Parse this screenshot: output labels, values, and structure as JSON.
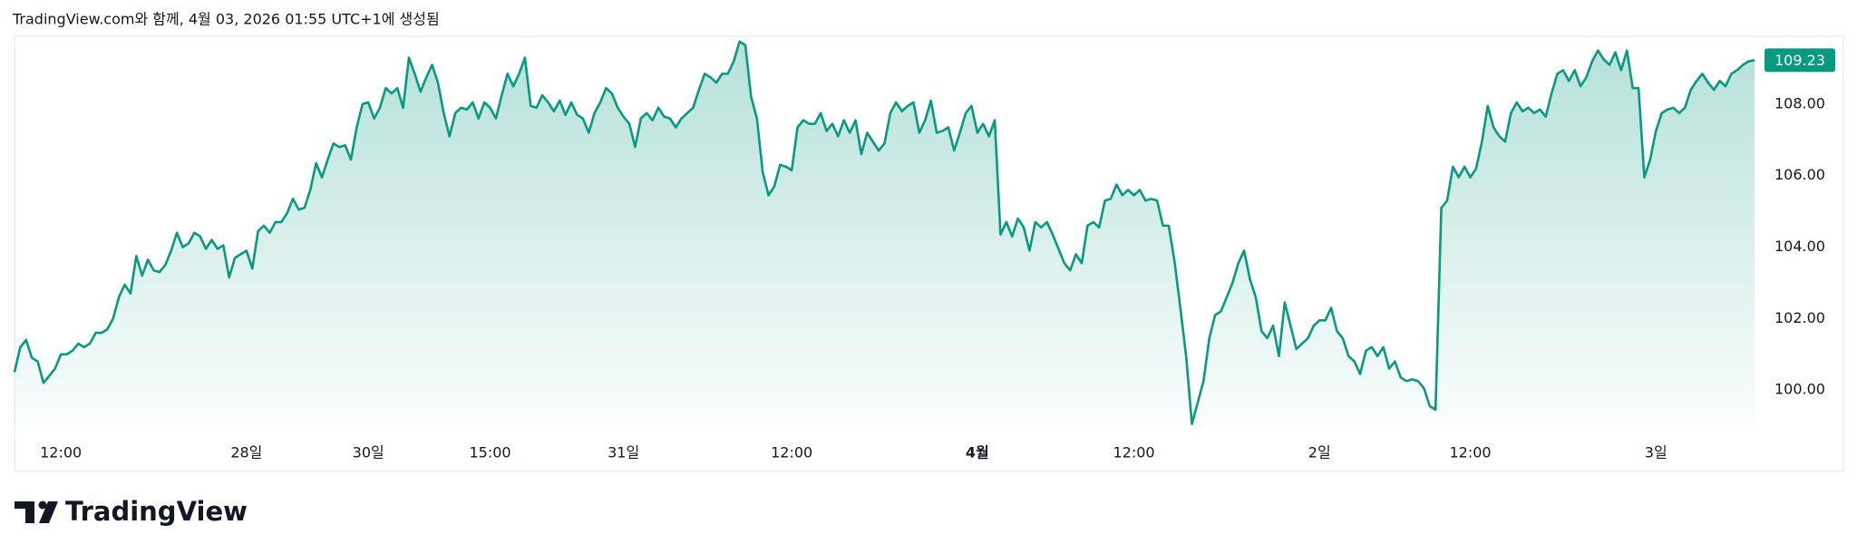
{
  "caption": "TradingView.com와 함께, 4월 03, 2026 01:55 UTC+1에 생성됨",
  "brand": "TradingView",
  "chart_data": {
    "type": "area",
    "color": "#089981",
    "grid": false,
    "xlim": [
      0,
      300
    ],
    "ylim": [
      99.04,
      109.9
    ],
    "yticks": [
      {
        "value": 100,
        "label": "100.00"
      },
      {
        "value": 102,
        "label": "102.00"
      },
      {
        "value": 104,
        "label": "104.00"
      },
      {
        "value": 106,
        "label": "106.00"
      },
      {
        "value": 108,
        "label": "108.00"
      }
    ],
    "xticks": [
      {
        "value": 8,
        "label": "12:00"
      },
      {
        "value": 40,
        "label": "28일"
      },
      {
        "value": 61,
        "label": "30일"
      },
      {
        "value": 82,
        "label": "15:00"
      },
      {
        "value": 105,
        "label": "31일"
      },
      {
        "value": 134,
        "label": "12:00"
      },
      {
        "value": 166,
        "label": "4월",
        "bold": true
      },
      {
        "value": 193,
        "label": "12:00"
      },
      {
        "value": 225,
        "label": "2일"
      },
      {
        "value": 251,
        "label": "12:00"
      },
      {
        "value": 283,
        "label": "3일"
      }
    ],
    "values": [
      100.5,
      101.2,
      101.4,
      100.9,
      100.8,
      100.2,
      100.4,
      100.6,
      101.0,
      101.0,
      101.1,
      101.3,
      101.2,
      101.3,
      101.6,
      101.6,
      101.7,
      102.0,
      102.6,
      102.95,
      102.7,
      103.75,
      103.2,
      103.65,
      103.35,
      103.3,
      103.5,
      103.9,
      104.4,
      104.0,
      104.1,
      104.4,
      104.3,
      103.95,
      104.2,
      103.95,
      104.05,
      103.15,
      103.7,
      103.8,
      103.9,
      103.4,
      104.45,
      104.6,
      104.4,
      104.7,
      104.7,
      104.95,
      105.35,
      105.05,
      105.1,
      105.6,
      106.35,
      105.95,
      106.45,
      106.9,
      106.8,
      106.85,
      106.45,
      107.35,
      108.0,
      108.05,
      107.6,
      107.9,
      108.45,
      108.3,
      108.45,
      107.9,
      109.3,
      108.85,
      108.35,
      108.75,
      109.1,
      108.6,
      107.75,
      107.1,
      107.75,
      107.9,
      107.85,
      108.05,
      107.6,
      108.05,
      107.9,
      107.6,
      108.25,
      108.85,
      108.5,
      108.85,
      109.3,
      107.95,
      107.9,
      108.25,
      108.05,
      107.8,
      108.1,
      107.7,
      108.05,
      107.7,
      107.6,
      107.2,
      107.75,
      108.05,
      108.45,
      108.3,
      107.9,
      107.65,
      107.45,
      106.8,
      107.6,
      107.75,
      107.55,
      107.9,
      107.65,
      107.6,
      107.35,
      107.6,
      107.75,
      107.9,
      108.4,
      108.85,
      108.75,
      108.6,
      108.85,
      108.85,
      109.2,
      109.75,
      109.65,
      108.2,
      107.6,
      106.1,
      105.45,
      105.7,
      106.3,
      106.25,
      106.15,
      107.35,
      107.55,
      107.45,
      107.45,
      107.75,
      107.25,
      107.45,
      107.1,
      107.55,
      107.2,
      107.55,
      106.6,
      107.2,
      106.95,
      106.7,
      106.9,
      107.75,
      108.05,
      107.8,
      107.95,
      108.05,
      107.2,
      107.55,
      108.1,
      107.2,
      107.25,
      107.35,
      106.7,
      107.2,
      107.75,
      107.95,
      107.2,
      107.45,
      107.1,
      107.55,
      104.35,
      104.7,
      104.3,
      104.8,
      104.55,
      103.9,
      104.7,
      104.55,
      104.7,
      104.35,
      103.95,
      103.55,
      103.35,
      103.8,
      103.55,
      104.6,
      104.7,
      104.55,
      105.3,
      105.35,
      105.75,
      105.45,
      105.6,
      105.45,
      105.6,
      105.3,
      105.35,
      105.3,
      104.6,
      104.6,
      103.6,
      102.3,
      100.95,
      99.05,
      99.65,
      100.25,
      101.45,
      102.1,
      102.2,
      102.6,
      103.0,
      103.55,
      103.9,
      103.1,
      102.6,
      101.65,
      101.45,
      101.8,
      100.95,
      102.45,
      101.8,
      101.15,
      101.3,
      101.45,
      101.8,
      101.95,
      101.95,
      102.3,
      101.65,
      101.45,
      100.95,
      100.8,
      100.45,
      101.1,
      101.2,
      100.95,
      101.2,
      100.6,
      100.8,
      100.35,
      100.25,
      100.3,
      100.25,
      100.05,
      99.55,
      99.45,
      105.1,
      105.3,
      106.25,
      105.95,
      106.25,
      105.95,
      106.2,
      106.95,
      107.95,
      107.35,
      107.1,
      106.95,
      107.75,
      108.05,
      107.8,
      107.9,
      107.75,
      107.85,
      107.65,
      108.3,
      108.85,
      108.95,
      108.65,
      108.95,
      108.5,
      108.75,
      109.2,
      109.5,
      109.25,
      109.1,
      109.45,
      108.95,
      109.5,
      108.45,
      108.45,
      105.95,
      106.45,
      107.25,
      107.75,
      107.85,
      107.9,
      107.75,
      107.9,
      108.4,
      108.65,
      108.85,
      108.6,
      108.4,
      108.65,
      108.5,
      108.85,
      108.95,
      109.1,
      109.2,
      109.23
    ]
  }
}
